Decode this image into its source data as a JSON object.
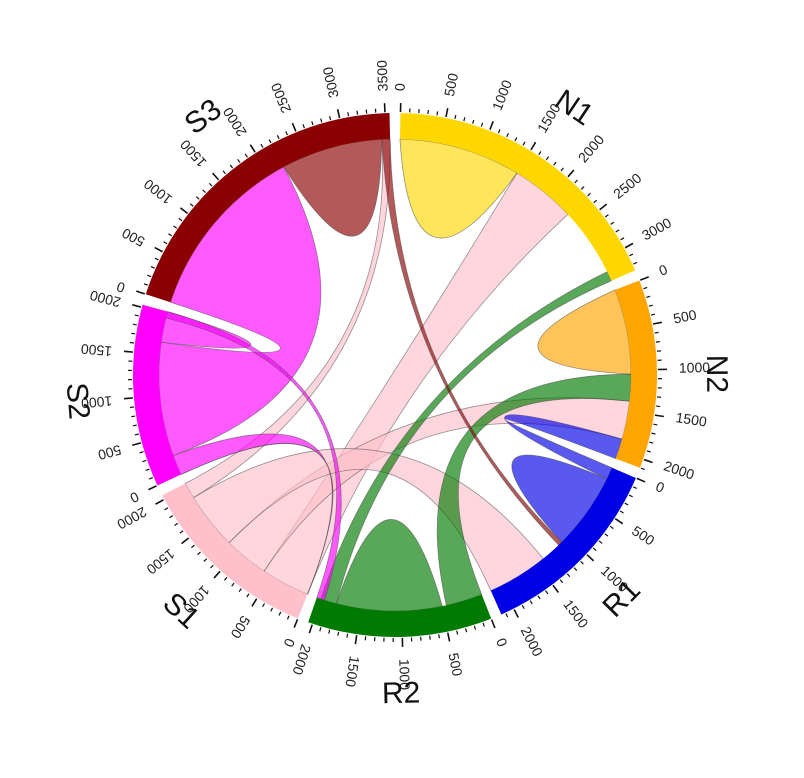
{
  "chart_data": {
    "type": "chord",
    "sectors": [
      {
        "name": "N1",
        "total": 3270,
        "color": "#FFD700"
      },
      {
        "name": "N2",
        "total": 2100,
        "color": "#FFA500"
      },
      {
        "name": "R1",
        "total": 2150,
        "color": "#0000E6"
      },
      {
        "name": "R2",
        "total": 2050,
        "color": "#007A00"
      },
      {
        "name": "S1",
        "total": 2050,
        "color": "#FFC0CB"
      },
      {
        "name": "S2",
        "total": 2030,
        "color": "#FF00FF"
      },
      {
        "name": "S3",
        "total": 3550,
        "color": "#8B0000"
      }
    ],
    "tick_step": 500,
    "ribbons": [
      {
        "source": "N1",
        "s0": 0,
        "s1": 1500,
        "target": "N1",
        "t0": 0,
        "t1": 1500
      },
      {
        "source": "S1",
        "s0": 0,
        "s1": 600,
        "target": "N1",
        "t0": 1500,
        "t1": 2300
      },
      {
        "source": "S1",
        "s0": 600,
        "s1": 1150,
        "target": "N2",
        "t0": 1380,
        "t1": 1850
      },
      {
        "source": "S1",
        "s0": 1150,
        "s1": 1850,
        "target": "R1",
        "t0": 1400,
        "t1": 2150
      },
      {
        "source": "S1",
        "s0": 1850,
        "s1": 2050,
        "target": "S3",
        "t0": 3450,
        "t1": 3550
      },
      {
        "source": "S2",
        "s0": 250,
        "s1": 1650,
        "target": "S3",
        "t0": 0,
        "t1": 2200
      },
      {
        "source": "S2",
        "s0": 1650,
        "s1": 2030,
        "target": "S2",
        "t0": 1650,
        "t1": 2030
      },
      {
        "source": "S2",
        "s0": 0,
        "s1": 250,
        "target": "S1",
        "t0": 0,
        "t1": 0
      },
      {
        "source": "S3",
        "s0": 2200,
        "s1": 3450,
        "target": "S3",
        "t0": 2200,
        "t1": 3450
      },
      {
        "source": "S1",
        "s0": 0,
        "s1": 0,
        "target": "S2",
        "t0": 0,
        "t1": 0
      },
      {
        "source": "N2",
        "s0": 0,
        "s1": 1050,
        "target": "N2",
        "t0": 0,
        "t1": 1050
      },
      {
        "source": "R2",
        "s0": 500,
        "s1": 1800,
        "target": "R2",
        "t0": 500,
        "t1": 1800
      },
      {
        "source": "R2",
        "s0": 0,
        "s1": 450,
        "target": "N2",
        "t0": 1050,
        "t1": 1380
      },
      {
        "source": "R1",
        "s0": 150,
        "s1": 1100,
        "target": "R1",
        "t0": 150,
        "t1": 1100
      },
      {
        "source": "R1",
        "s0": 0,
        "s1": 150,
        "target": "N2",
        "t0": 1850,
        "t1": 2100
      },
      {
        "source": "R2",
        "s0": 1800,
        "s1": 2000,
        "target": "N1",
        "t0": 3150,
        "t1": 3270
      },
      {
        "source": "S2",
        "s0": 1950,
        "s1": 2030,
        "target": "R2",
        "t0": 1950,
        "t1": 2050
      },
      {
        "source": "S3",
        "s0": 3450,
        "s1": 3550,
        "target": "R1",
        "t0": 1100,
        "t1": 1150
      }
    ]
  }
}
